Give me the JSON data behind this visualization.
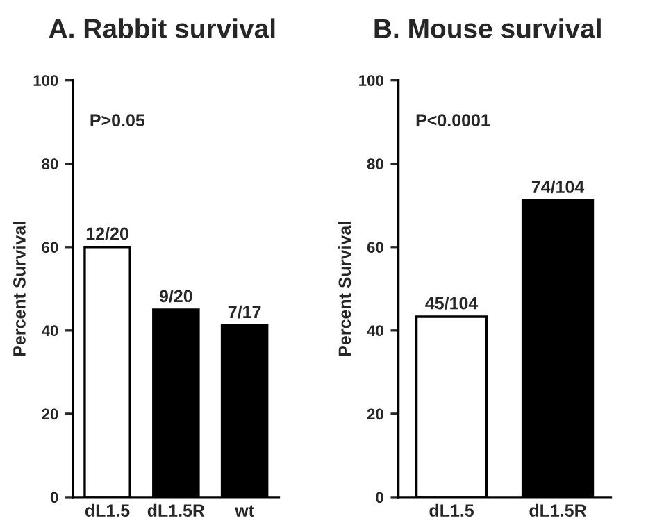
{
  "chart_data": [
    {
      "type": "bar",
      "title": "A. Rabbit survival",
      "ylabel": "Percent Survival",
      "categories": [
        "dL1.5",
        "dL1.5R",
        "wt"
      ],
      "values": [
        60,
        45,
        41.2
      ],
      "colors": [
        "#ffffff",
        "#000000",
        "#000000"
      ],
      "value_labels": [
        "12/20",
        "9/20",
        "7/17"
      ],
      "ylim": [
        0,
        100
      ],
      "yticks": [
        0,
        20,
        40,
        60,
        80,
        100
      ],
      "annotations": [
        "P>0.05"
      ]
    },
    {
      "type": "bar",
      "title": "B. Mouse survival",
      "ylabel": "Percent Survival",
      "categories": [
        "dL1.5",
        "dL1.5R"
      ],
      "values": [
        43.3,
        71.2
      ],
      "colors": [
        "#ffffff",
        "#000000"
      ],
      "value_labels": [
        "45/104",
        "74/104"
      ],
      "ylim": [
        0,
        100
      ],
      "yticks": [
        0,
        20,
        40,
        60,
        80,
        100
      ],
      "annotations": [
        "P<0.0001"
      ]
    }
  ]
}
